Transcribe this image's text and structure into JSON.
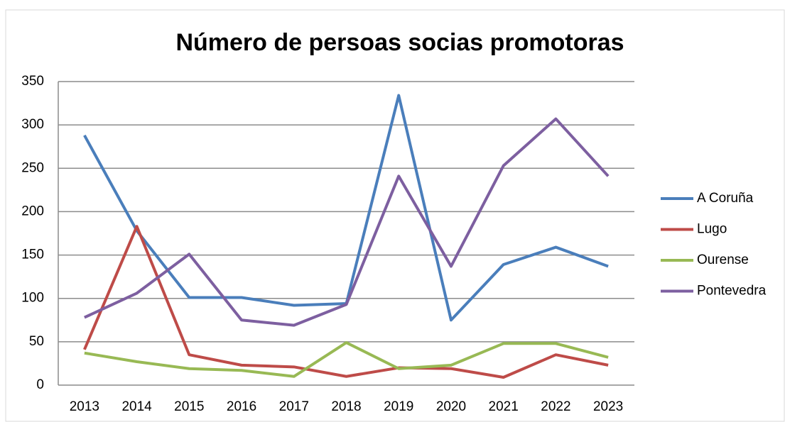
{
  "chart_data": {
    "type": "line",
    "title": "Número de persoas socias promotoras",
    "categories": [
      "2013",
      "2014",
      "2015",
      "2016",
      "2017",
      "2018",
      "2019",
      "2020",
      "2021",
      "2022",
      "2023"
    ],
    "series": [
      {
        "name": "A Coruña",
        "color": "#4a7ebb",
        "values": [
          288,
          178,
          101,
          101,
          92,
          94,
          334,
          75,
          139,
          159,
          137
        ]
      },
      {
        "name": "Lugo",
        "color": "#be4b48",
        "values": [
          41,
          183,
          35,
          23,
          21,
          10,
          20,
          19,
          9,
          35,
          23
        ]
      },
      {
        "name": "Ourense",
        "color": "#98b954",
        "values": [
          37,
          27,
          19,
          17,
          10,
          49,
          19,
          23,
          48,
          48,
          32
        ]
      },
      {
        "name": "Pontevedra",
        "color": "#7d5fa0",
        "values": [
          78,
          106,
          151,
          75,
          69,
          93,
          241,
          137,
          253,
          307,
          241
        ]
      }
    ],
    "ylim": [
      0,
      350
    ],
    "yticks": [
      0,
      50,
      100,
      150,
      200,
      250,
      300,
      350
    ],
    "grid": true,
    "legend": "right"
  }
}
